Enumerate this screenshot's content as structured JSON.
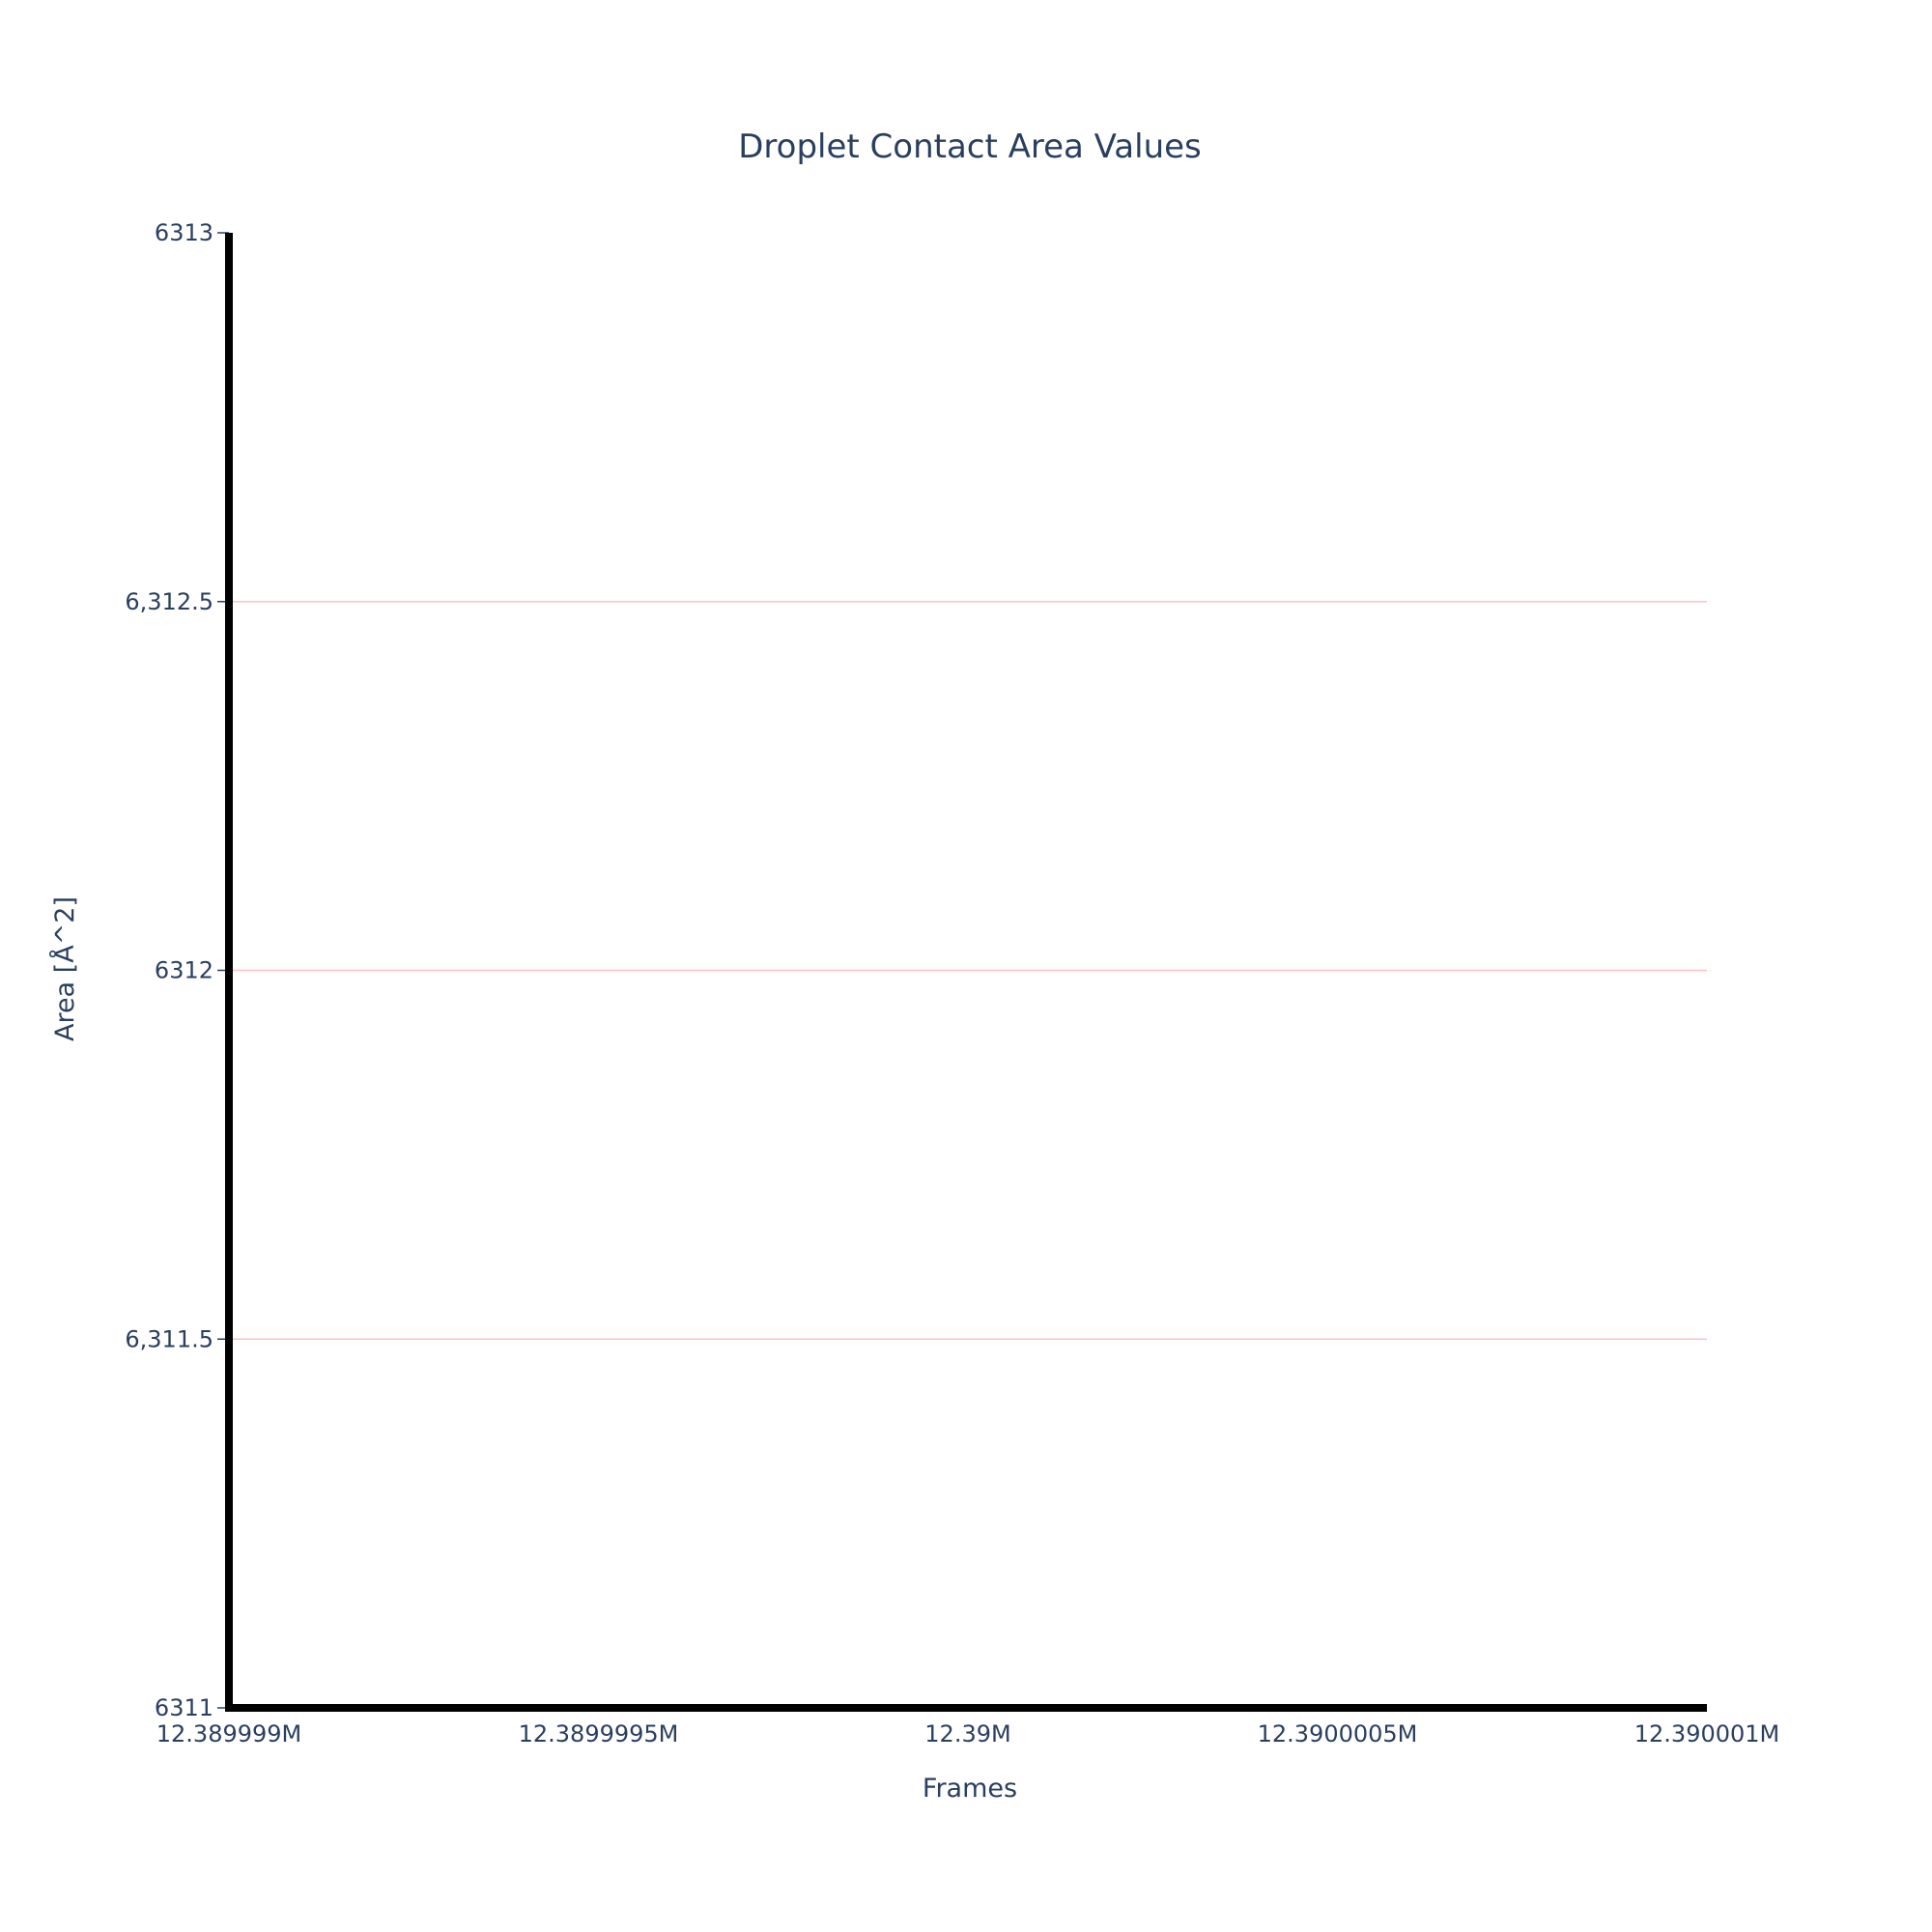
{
  "chart_data": {
    "type": "line",
    "title": "Droplet Contact Area Values",
    "xlabel": "Frames",
    "ylabel": "Area [Å^2]",
    "xlim": [
      12389999,
      12390001
    ],
    "ylim": [
      6311,
      6313
    ],
    "x_ticks": [
      {
        "value": 12389999,
        "label": "12.389999M"
      },
      {
        "value": 12389999.5,
        "label": "12.3899995M"
      },
      {
        "value": 12390000,
        "label": "12.39M"
      },
      {
        "value": 12390000.5,
        "label": "12.3900005M"
      },
      {
        "value": 12390001,
        "label": "12.390001M"
      }
    ],
    "y_ticks": [
      {
        "value": 6311,
        "label": "6311"
      },
      {
        "value": 6311.5,
        "label": "6,311.5"
      },
      {
        "value": 6312,
        "label": "6312"
      },
      {
        "value": 6312.5,
        "label": "6,312.5"
      },
      {
        "value": 6313,
        "label": "6313"
      }
    ],
    "y_gridlines": [
      6311.5,
      6312,
      6312.5
    ],
    "grid": {
      "x": false,
      "y": true
    },
    "series": [],
    "colors": {
      "text": "#2a3f5f",
      "axis": "#000000",
      "grid": "#ffc0cb",
      "background": "#ffffff"
    }
  }
}
